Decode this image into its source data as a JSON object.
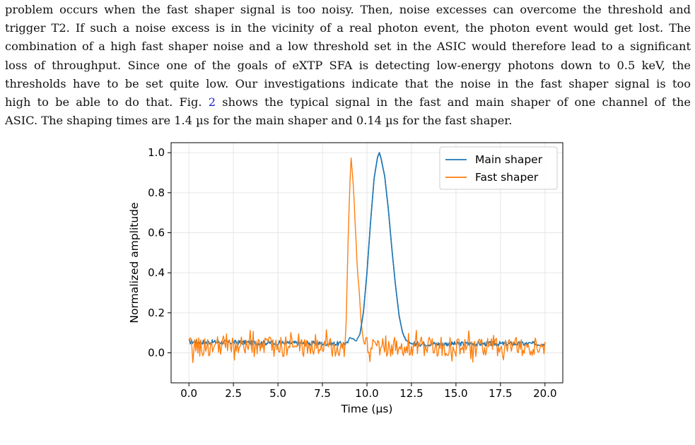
{
  "paragraph": {
    "lines": [
      "problem occurs when the fast shaper signal is too noisy. Then, noise excesses can overcome the threshold and",
      "trigger T2. If such a noise excess is in the vicinity of a real photon event, the photon event would get lost. The",
      "combination of a high fast shaper noise and a low threshold set in the ASIC would therefore lead to a significant",
      "loss of throughput. Since one of the goals of eXTP SFA is detecting low-energy photons down to 0.5 keV, the",
      "thresholds have to be set quite low. Our investigations indicate that the noise in the fast shaper signal is too"
    ],
    "line6_pre": "high to be able to do that. Fig. ",
    "line6_ref": "2",
    "line6_post": " shows the typical signal in the fast and main shaper of one channel of the",
    "line7": "ASIC. The shaping times are 1.4 µs for the main shaper and 0.14 µs for the fast shaper."
  },
  "chart_data": {
    "type": "line",
    "xlabel": "Time (µs)",
    "ylabel": "Normalized amplitude",
    "xlim": [
      -1.0,
      21.0
    ],
    "ylim": [
      -0.15,
      1.05
    ],
    "xticks": [
      0.0,
      2.5,
      5.0,
      7.5,
      10.0,
      12.5,
      15.0,
      17.5,
      20.0
    ],
    "xtick_labels": [
      "0.0",
      "2.5",
      "5.0",
      "7.5",
      "10.0",
      "12.5",
      "15.0",
      "17.5",
      "20.0"
    ],
    "yticks": [
      0.0,
      0.2,
      0.4,
      0.6,
      0.8,
      1.0
    ],
    "ytick_labels": [
      "0.0",
      "0.2",
      "0.4",
      "0.6",
      "0.8",
      "1.0"
    ],
    "grid": true,
    "legend_position": "top-right",
    "series": [
      {
        "name": "Main shaper",
        "color": "#1f77b4",
        "baseline": 0.045,
        "noise_amplitude": 0.012,
        "x": [
          0.0,
          8.9,
          9.05,
          9.2,
          9.4,
          9.6,
          9.8,
          10.0,
          10.2,
          10.4,
          10.6,
          10.7,
          10.8,
          11.0,
          11.2,
          11.4,
          11.6,
          11.8,
          12.0,
          12.2,
          12.4,
          12.6,
          20.0
        ],
        "values": [
          0.055,
          0.045,
          0.08,
          0.07,
          0.06,
          0.09,
          0.2,
          0.4,
          0.65,
          0.87,
          0.98,
          1.0,
          0.97,
          0.88,
          0.72,
          0.52,
          0.34,
          0.19,
          0.1,
          0.06,
          0.05,
          0.045,
          0.045
        ]
      },
      {
        "name": "Fast shaper",
        "color": "#ff7f0e",
        "baseline": 0.03,
        "noise_amplitude": 0.05,
        "x": [
          0.0,
          8.8,
          8.95,
          9.1,
          9.25,
          9.45,
          9.7,
          9.9,
          20.0
        ],
        "values": [
          0.03,
          0.03,
          0.6,
          1.0,
          0.8,
          0.45,
          0.12,
          0.03,
          0.03
        ]
      }
    ]
  }
}
